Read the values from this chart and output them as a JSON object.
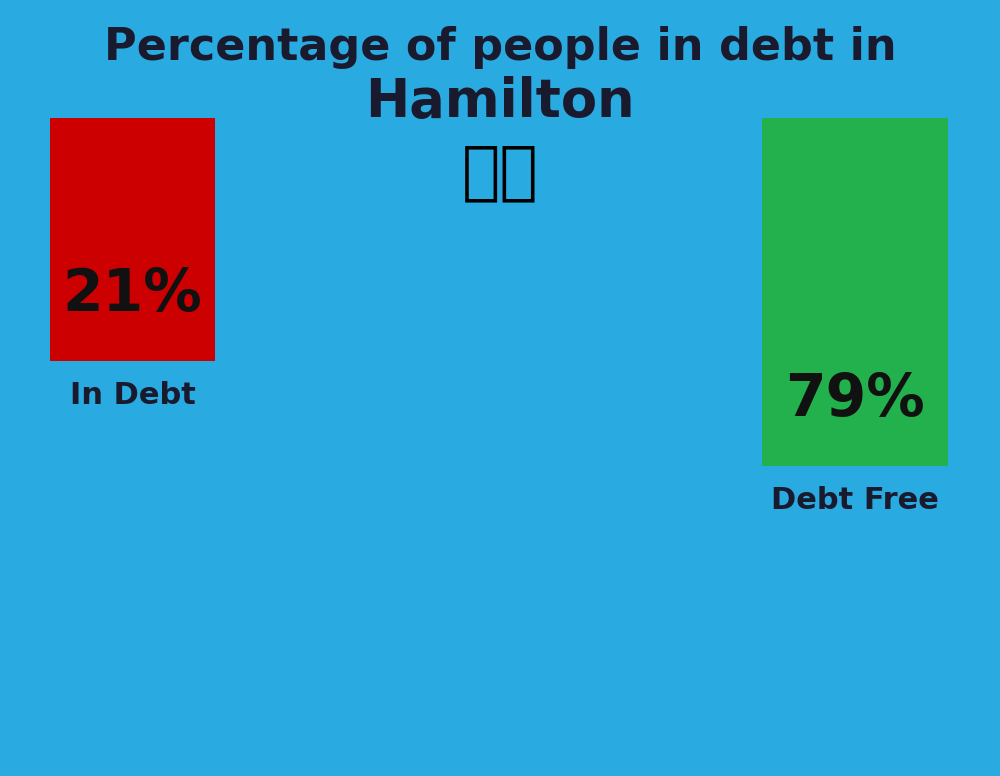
{
  "title_line1": "Percentage of people in debt in",
  "title_line2": "Hamilton",
  "background_color": "#29ABE2",
  "bar1_value": 21,
  "bar1_label": "21%",
  "bar1_color": "#CC0000",
  "bar1_caption": "In Debt",
  "bar2_value": 79,
  "bar2_label": "79%",
  "bar2_color": "#22B14C",
  "bar2_caption": "Debt Free",
  "title_color": "#1a1a2e",
  "label_color": "#111111",
  "caption_color": "#1a1a2e",
  "title_fontsize": 32,
  "subtitle_fontsize": 38,
  "bar_label_fontsize": 42,
  "caption_fontsize": 22,
  "flag_emoji": "🇳🇿"
}
